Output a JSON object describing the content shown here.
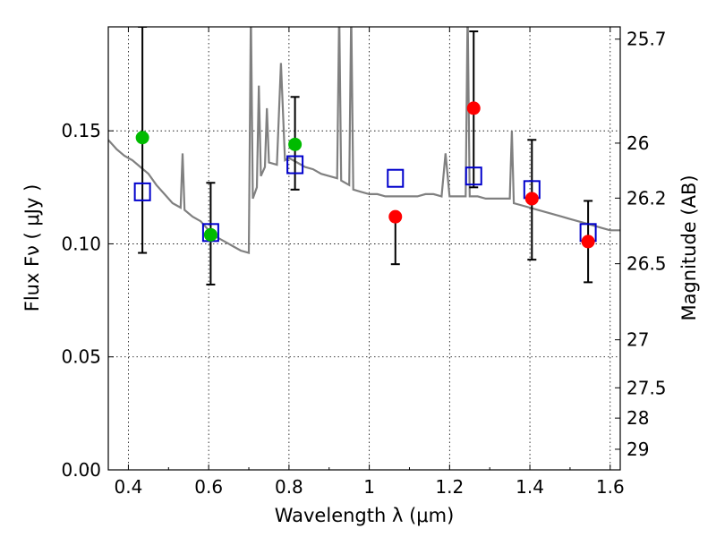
{
  "chart_data": {
    "type": "scatter",
    "xlabel": "Wavelength  λ (μm)",
    "ylabel": "Flux  Fν  ( μJy )",
    "y2label": "Magnitude (AB)",
    "xlim": [
      0.35,
      1.625
    ],
    "ylim": [
      0.0,
      0.196
    ],
    "grid": true,
    "x_ticks": [
      0.4,
      0.6,
      0.8,
      1.0,
      1.2,
      1.4,
      1.6
    ],
    "x_tick_labels": [
      "0.4",
      "0.6",
      "0.8",
      "1",
      "1.2",
      "1.4",
      "1.6"
    ],
    "y_ticks": [
      0.0,
      0.05,
      0.1,
      0.15
    ],
    "y_tick_labels": [
      "0.00",
      "0.05",
      "0.10",
      "0.15"
    ],
    "y2_ticks": [
      {
        "label": "25.7",
        "mag": 25.7
      },
      {
        "label": "26",
        "mag": 26.0
      },
      {
        "label": "26.2",
        "mag": 26.2
      },
      {
        "label": "26.5",
        "mag": 26.5
      },
      {
        "label": "27",
        "mag": 27.0
      },
      {
        "label": "27.5",
        "mag": 27.5
      },
      {
        "label": "28",
        "mag": 28.0
      },
      {
        "label": "29",
        "mag": 29.0
      }
    ],
    "colors": {
      "model": "#808080",
      "observed_optical": "#00bb00",
      "observed_nir": "#ff0000",
      "model_photometry": "#0000cc",
      "errorbar": "#000000"
    },
    "series": [
      {
        "kind": "line",
        "x": [
          0.35,
          0.37,
          0.39,
          0.41,
          0.43,
          0.45,
          0.47,
          0.49,
          0.51,
          0.53,
          0.535,
          0.54,
          0.56,
          0.58,
          0.6,
          0.62,
          0.64,
          0.66,
          0.68,
          0.7,
          0.705,
          0.71,
          0.72,
          0.725,
          0.73,
          0.74,
          0.745,
          0.75,
          0.77,
          0.78,
          0.79,
          0.8,
          0.82,
          0.84,
          0.86,
          0.88,
          0.9,
          0.92,
          0.925,
          0.93,
          0.95,
          0.955,
          0.96,
          0.98,
          1.0,
          1.02,
          1.04,
          1.06,
          1.08,
          1.1,
          1.12,
          1.14,
          1.16,
          1.18,
          1.19,
          1.2,
          1.22,
          1.24,
          1.245,
          1.25,
          1.27,
          1.29,
          1.31,
          1.33,
          1.35,
          1.355,
          1.36,
          1.38,
          1.4,
          1.42,
          1.44,
          1.46,
          1.48,
          1.5,
          1.52,
          1.54,
          1.56,
          1.58,
          1.6,
          1.625
        ],
        "y": [
          0.146,
          0.142,
          0.139,
          0.137,
          0.134,
          0.131,
          0.126,
          0.122,
          0.118,
          0.116,
          0.14,
          0.115,
          0.112,
          0.11,
          0.106,
          0.103,
          0.101,
          0.099,
          0.097,
          0.096,
          0.3,
          0.12,
          0.125,
          0.17,
          0.13,
          0.134,
          0.16,
          0.136,
          0.135,
          0.18,
          0.137,
          0.138,
          0.136,
          0.134,
          0.133,
          0.131,
          0.13,
          0.129,
          0.3,
          0.128,
          0.126,
          0.3,
          0.124,
          0.123,
          0.122,
          0.122,
          0.121,
          0.121,
          0.121,
          0.121,
          0.121,
          0.122,
          0.122,
          0.121,
          0.14,
          0.121,
          0.121,
          0.121,
          0.3,
          0.121,
          0.121,
          0.12,
          0.12,
          0.12,
          0.12,
          0.15,
          0.118,
          0.117,
          0.116,
          0.115,
          0.114,
          0.113,
          0.112,
          0.111,
          0.11,
          0.109,
          0.108,
          0.107,
          0.106,
          0.106
        ]
      },
      {
        "kind": "points",
        "name": "",
        "marker": "circle",
        "color": "#00bb00",
        "points": [
          {
            "x": 0.435,
            "y": 0.147,
            "err_lo": 0.096,
            "err_hi": 0.196
          },
          {
            "x": 0.605,
            "y": 0.104,
            "err_lo": 0.082,
            "err_hi": 0.127
          },
          {
            "x": 0.815,
            "y": 0.144,
            "err_lo": 0.124,
            "err_hi": 0.165
          }
        ]
      },
      {
        "kind": "points",
        "name": "",
        "marker": "circle",
        "color": "#ff0000",
        "points": [
          {
            "x": 1.065,
            "y": 0.112,
            "err_lo": 0.091,
            "err_hi": 0.112
          },
          {
            "x": 1.26,
            "y": 0.16,
            "err_lo": 0.125,
            "err_hi": 0.194
          },
          {
            "x": 1.405,
            "y": 0.12,
            "err_lo": 0.093,
            "err_hi": 0.146
          },
          {
            "x": 1.545,
            "y": 0.101,
            "err_lo": 0.083,
            "err_hi": 0.119
          }
        ]
      },
      {
        "kind": "points",
        "name": "",
        "marker": "open-square",
        "color": "#0000cc",
        "points": [
          {
            "x": 0.435,
            "y": 0.123
          },
          {
            "x": 0.605,
            "y": 0.105
          },
          {
            "x": 0.815,
            "y": 0.135
          },
          {
            "x": 1.065,
            "y": 0.129
          },
          {
            "x": 1.26,
            "y": 0.13
          },
          {
            "x": 1.405,
            "y": 0.124
          },
          {
            "x": 1.545,
            "y": 0.105
          }
        ]
      }
    ]
  }
}
